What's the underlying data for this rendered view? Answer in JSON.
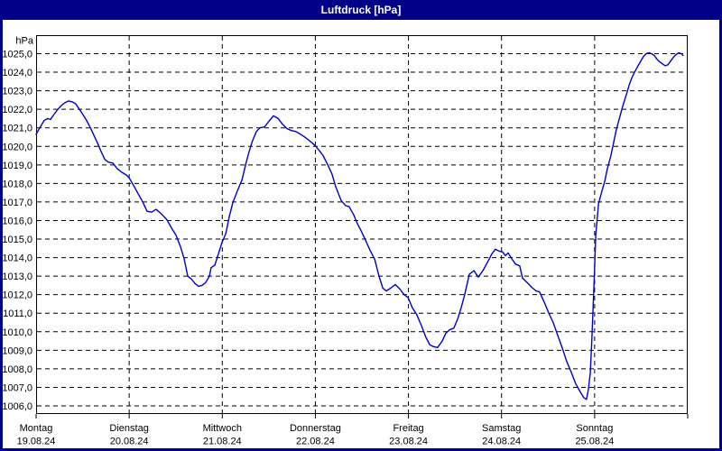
{
  "window": {
    "title": "Luftdruck [hPa]"
  },
  "colors": {
    "titlebar_bg": "#000089",
    "window_border": "#000089",
    "title_text": "#ffffff",
    "plot_bg": "#fefefe",
    "grid": "#000000",
    "axis_text": "#000000",
    "line": "#0000cc"
  },
  "chart_data": {
    "type": "line",
    "title": "Luftdruck [hPa]",
    "ylabel": "hPa",
    "ylim": [
      1006,
      1025
    ],
    "y_tick_step": 1.0,
    "grid": true,
    "legend_position": "none",
    "y_tick_labels": [
      "1025,0",
      "1024,0",
      "1023,0",
      "1022,0",
      "1021,0",
      "1020,0",
      "1019,0",
      "1018,0",
      "1017,0",
      "1016,0",
      "1015,0",
      "1014,0",
      "1013,0",
      "1012,0",
      "1011,0",
      "1010,0",
      "1009,0",
      "1008,0",
      "1007,0",
      "1006,0"
    ],
    "x_axis_days": [
      {
        "label": "Montag",
        "date": "19.08.24"
      },
      {
        "label": "Dienstag",
        "date": "20.08.24"
      },
      {
        "label": "Mittwoch",
        "date": "21.08.24"
      },
      {
        "label": "Donnerstag",
        "date": "22.08.24"
      },
      {
        "label": "Freitag",
        "date": "23.08.24"
      },
      {
        "label": "Samstag",
        "date": "24.08.24"
      },
      {
        "label": "Sonntag",
        "date": "25.08.24"
      }
    ],
    "x_range_hours": [
      0,
      168
    ],
    "series": [
      {
        "name": "Luftdruck",
        "unit": "hPa",
        "points": [
          [
            0,
            1020.65
          ],
          [
            1.2,
            1021.1
          ],
          [
            2.1,
            1021.4
          ],
          [
            3,
            1021.5
          ],
          [
            3.7,
            1021.45
          ],
          [
            4.7,
            1021.75
          ],
          [
            5.6,
            1022
          ],
          [
            6.5,
            1022.2
          ],
          [
            7.4,
            1022.35
          ],
          [
            8.4,
            1022.45
          ],
          [
            9.3,
            1022.4
          ],
          [
            10.2,
            1022.3
          ],
          [
            11.2,
            1022
          ],
          [
            12.1,
            1021.7
          ],
          [
            13,
            1021.4
          ],
          [
            14,
            1021
          ],
          [
            14.9,
            1020.6
          ],
          [
            15.8,
            1020.2
          ],
          [
            16.8,
            1019.7
          ],
          [
            17.7,
            1019.3
          ],
          [
            18.6,
            1019.15
          ],
          [
            19.8,
            1019.1
          ],
          [
            20.9,
            1018.8
          ],
          [
            22.1,
            1018.6
          ],
          [
            23.3,
            1018.45
          ],
          [
            24,
            1018.3
          ],
          [
            25.1,
            1017.9
          ],
          [
            26.3,
            1017.45
          ],
          [
            27.5,
            1017
          ],
          [
            28.6,
            1016.5
          ],
          [
            29.8,
            1016.45
          ],
          [
            30.9,
            1016.6
          ],
          [
            32.1,
            1016.4
          ],
          [
            33.7,
            1016.05
          ],
          [
            34.9,
            1015.6
          ],
          [
            36.1,
            1015.2
          ],
          [
            37.2,
            1014.6
          ],
          [
            38.2,
            1013.9
          ],
          [
            39.1,
            1013
          ],
          [
            40,
            1012.85
          ],
          [
            41,
            1012.6
          ],
          [
            41.9,
            1012.45
          ],
          [
            42.8,
            1012.5
          ],
          [
            43.7,
            1012.65
          ],
          [
            44.7,
            1013
          ],
          [
            45.1,
            1013.45
          ],
          [
            46.1,
            1013.6
          ],
          [
            47,
            1014.2
          ],
          [
            47.9,
            1014.8
          ],
          [
            48.9,
            1015.3
          ],
          [
            49.8,
            1016.2
          ],
          [
            50.7,
            1016.95
          ],
          [
            51.9,
            1017.6
          ],
          [
            53.1,
            1018.2
          ],
          [
            54,
            1019
          ],
          [
            54.9,
            1019.7
          ],
          [
            55.8,
            1020.3
          ],
          [
            56.8,
            1020.8
          ],
          [
            57.7,
            1021
          ],
          [
            58.9,
            1021.05
          ],
          [
            60,
            1021.35
          ],
          [
            61.2,
            1021.65
          ],
          [
            62.4,
            1021.5
          ],
          [
            63.5,
            1021.2
          ],
          [
            64.7,
            1020.95
          ],
          [
            65.9,
            1020.85
          ],
          [
            67,
            1020.8
          ],
          [
            68.2,
            1020.65
          ],
          [
            69.3,
            1020.5
          ],
          [
            70.5,
            1020.3
          ],
          [
            71.9,
            1020.05
          ],
          [
            73.1,
            1019.75
          ],
          [
            74,
            1019.5
          ],
          [
            75.2,
            1019
          ],
          [
            76.3,
            1018.5
          ],
          [
            77.2,
            1017.85
          ],
          [
            78.6,
            1017.1
          ],
          [
            79.8,
            1016.8
          ],
          [
            80.7,
            1016.75
          ],
          [
            81.9,
            1016.3
          ],
          [
            82.8,
            1015.85
          ],
          [
            83.8,
            1015.45
          ],
          [
            84.9,
            1014.95
          ],
          [
            86.1,
            1014.4
          ],
          [
            87.3,
            1013.9
          ],
          [
            88.4,
            1013
          ],
          [
            89.4,
            1012.35
          ],
          [
            90.3,
            1012.2
          ],
          [
            91.4,
            1012.35
          ],
          [
            92.6,
            1012.55
          ],
          [
            93.8,
            1012.3
          ],
          [
            94.9,
            1012
          ],
          [
            95.9,
            1011.85
          ],
          [
            97,
            1011.3
          ],
          [
            98.2,
            1010.9
          ],
          [
            99.4,
            1010.3
          ],
          [
            100.5,
            1009.7
          ],
          [
            101.5,
            1009.3
          ],
          [
            102.4,
            1009.2
          ],
          [
            103.5,
            1009.15
          ],
          [
            104.7,
            1009.5
          ],
          [
            105.6,
            1009.9
          ],
          [
            106.6,
            1010.1
          ],
          [
            107.7,
            1010.2
          ],
          [
            108.7,
            1010.7
          ],
          [
            109.6,
            1011.3
          ],
          [
            110.5,
            1012
          ],
          [
            111.7,
            1013.1
          ],
          [
            112.9,
            1013.3
          ],
          [
            114,
            1012.95
          ],
          [
            115.2,
            1013.3
          ],
          [
            116.4,
            1013.75
          ],
          [
            117.5,
            1014.2
          ],
          [
            118.4,
            1014.45
          ],
          [
            119.4,
            1014.35
          ],
          [
            120.3,
            1014.3
          ],
          [
            121,
            1014.1
          ],
          [
            121.7,
            1014.25
          ],
          [
            122.6,
            1013.95
          ],
          [
            123.6,
            1013.65
          ],
          [
            124.7,
            1013.55
          ],
          [
            125.4,
            1012.9
          ],
          [
            126.6,
            1012.65
          ],
          [
            127.8,
            1012.4
          ],
          [
            128.9,
            1012.2
          ],
          [
            129.8,
            1012.15
          ],
          [
            131,
            1011.6
          ],
          [
            132.2,
            1011
          ],
          [
            133.3,
            1010.5
          ],
          [
            134.5,
            1009.8
          ],
          [
            135.7,
            1009.1
          ],
          [
            136.8,
            1008.4
          ],
          [
            138,
            1007.8
          ],
          [
            139.1,
            1007.2
          ],
          [
            140.3,
            1006.75
          ],
          [
            141.2,
            1006.45
          ],
          [
            141.9,
            1006.35
          ],
          [
            142.4,
            1006.9
          ],
          [
            142.9,
            1007.8
          ],
          [
            143.3,
            1009.6
          ],
          [
            143.8,
            1012.3
          ],
          [
            144.3,
            1015.2
          ],
          [
            145,
            1016.9
          ],
          [
            145.9,
            1017.6
          ],
          [
            146.6,
            1018.1
          ],
          [
            147.3,
            1018.8
          ],
          [
            148.2,
            1019.5
          ],
          [
            148.9,
            1020.2
          ],
          [
            149.6,
            1020.9
          ],
          [
            150.5,
            1021.6
          ],
          [
            151.3,
            1022.2
          ],
          [
            152.2,
            1022.8
          ],
          [
            152.9,
            1023.3
          ],
          [
            153.6,
            1023.7
          ],
          [
            154.3,
            1024
          ],
          [
            155.2,
            1024.35
          ],
          [
            155.9,
            1024.6
          ],
          [
            156.6,
            1024.85
          ],
          [
            157.3,
            1025
          ],
          [
            158,
            1025.05
          ],
          [
            158.7,
            1025
          ],
          [
            159.4,
            1024.9
          ],
          [
            160.1,
            1024.7
          ],
          [
            160.8,
            1024.55
          ],
          [
            161.5,
            1024.45
          ],
          [
            162.2,
            1024.35
          ],
          [
            162.9,
            1024.4
          ],
          [
            163.6,
            1024.6
          ],
          [
            164.3,
            1024.8
          ],
          [
            165,
            1024.95
          ],
          [
            165.7,
            1025.05
          ],
          [
            166.4,
            1025
          ],
          [
            166.8,
            1024.9
          ]
        ]
      }
    ]
  }
}
